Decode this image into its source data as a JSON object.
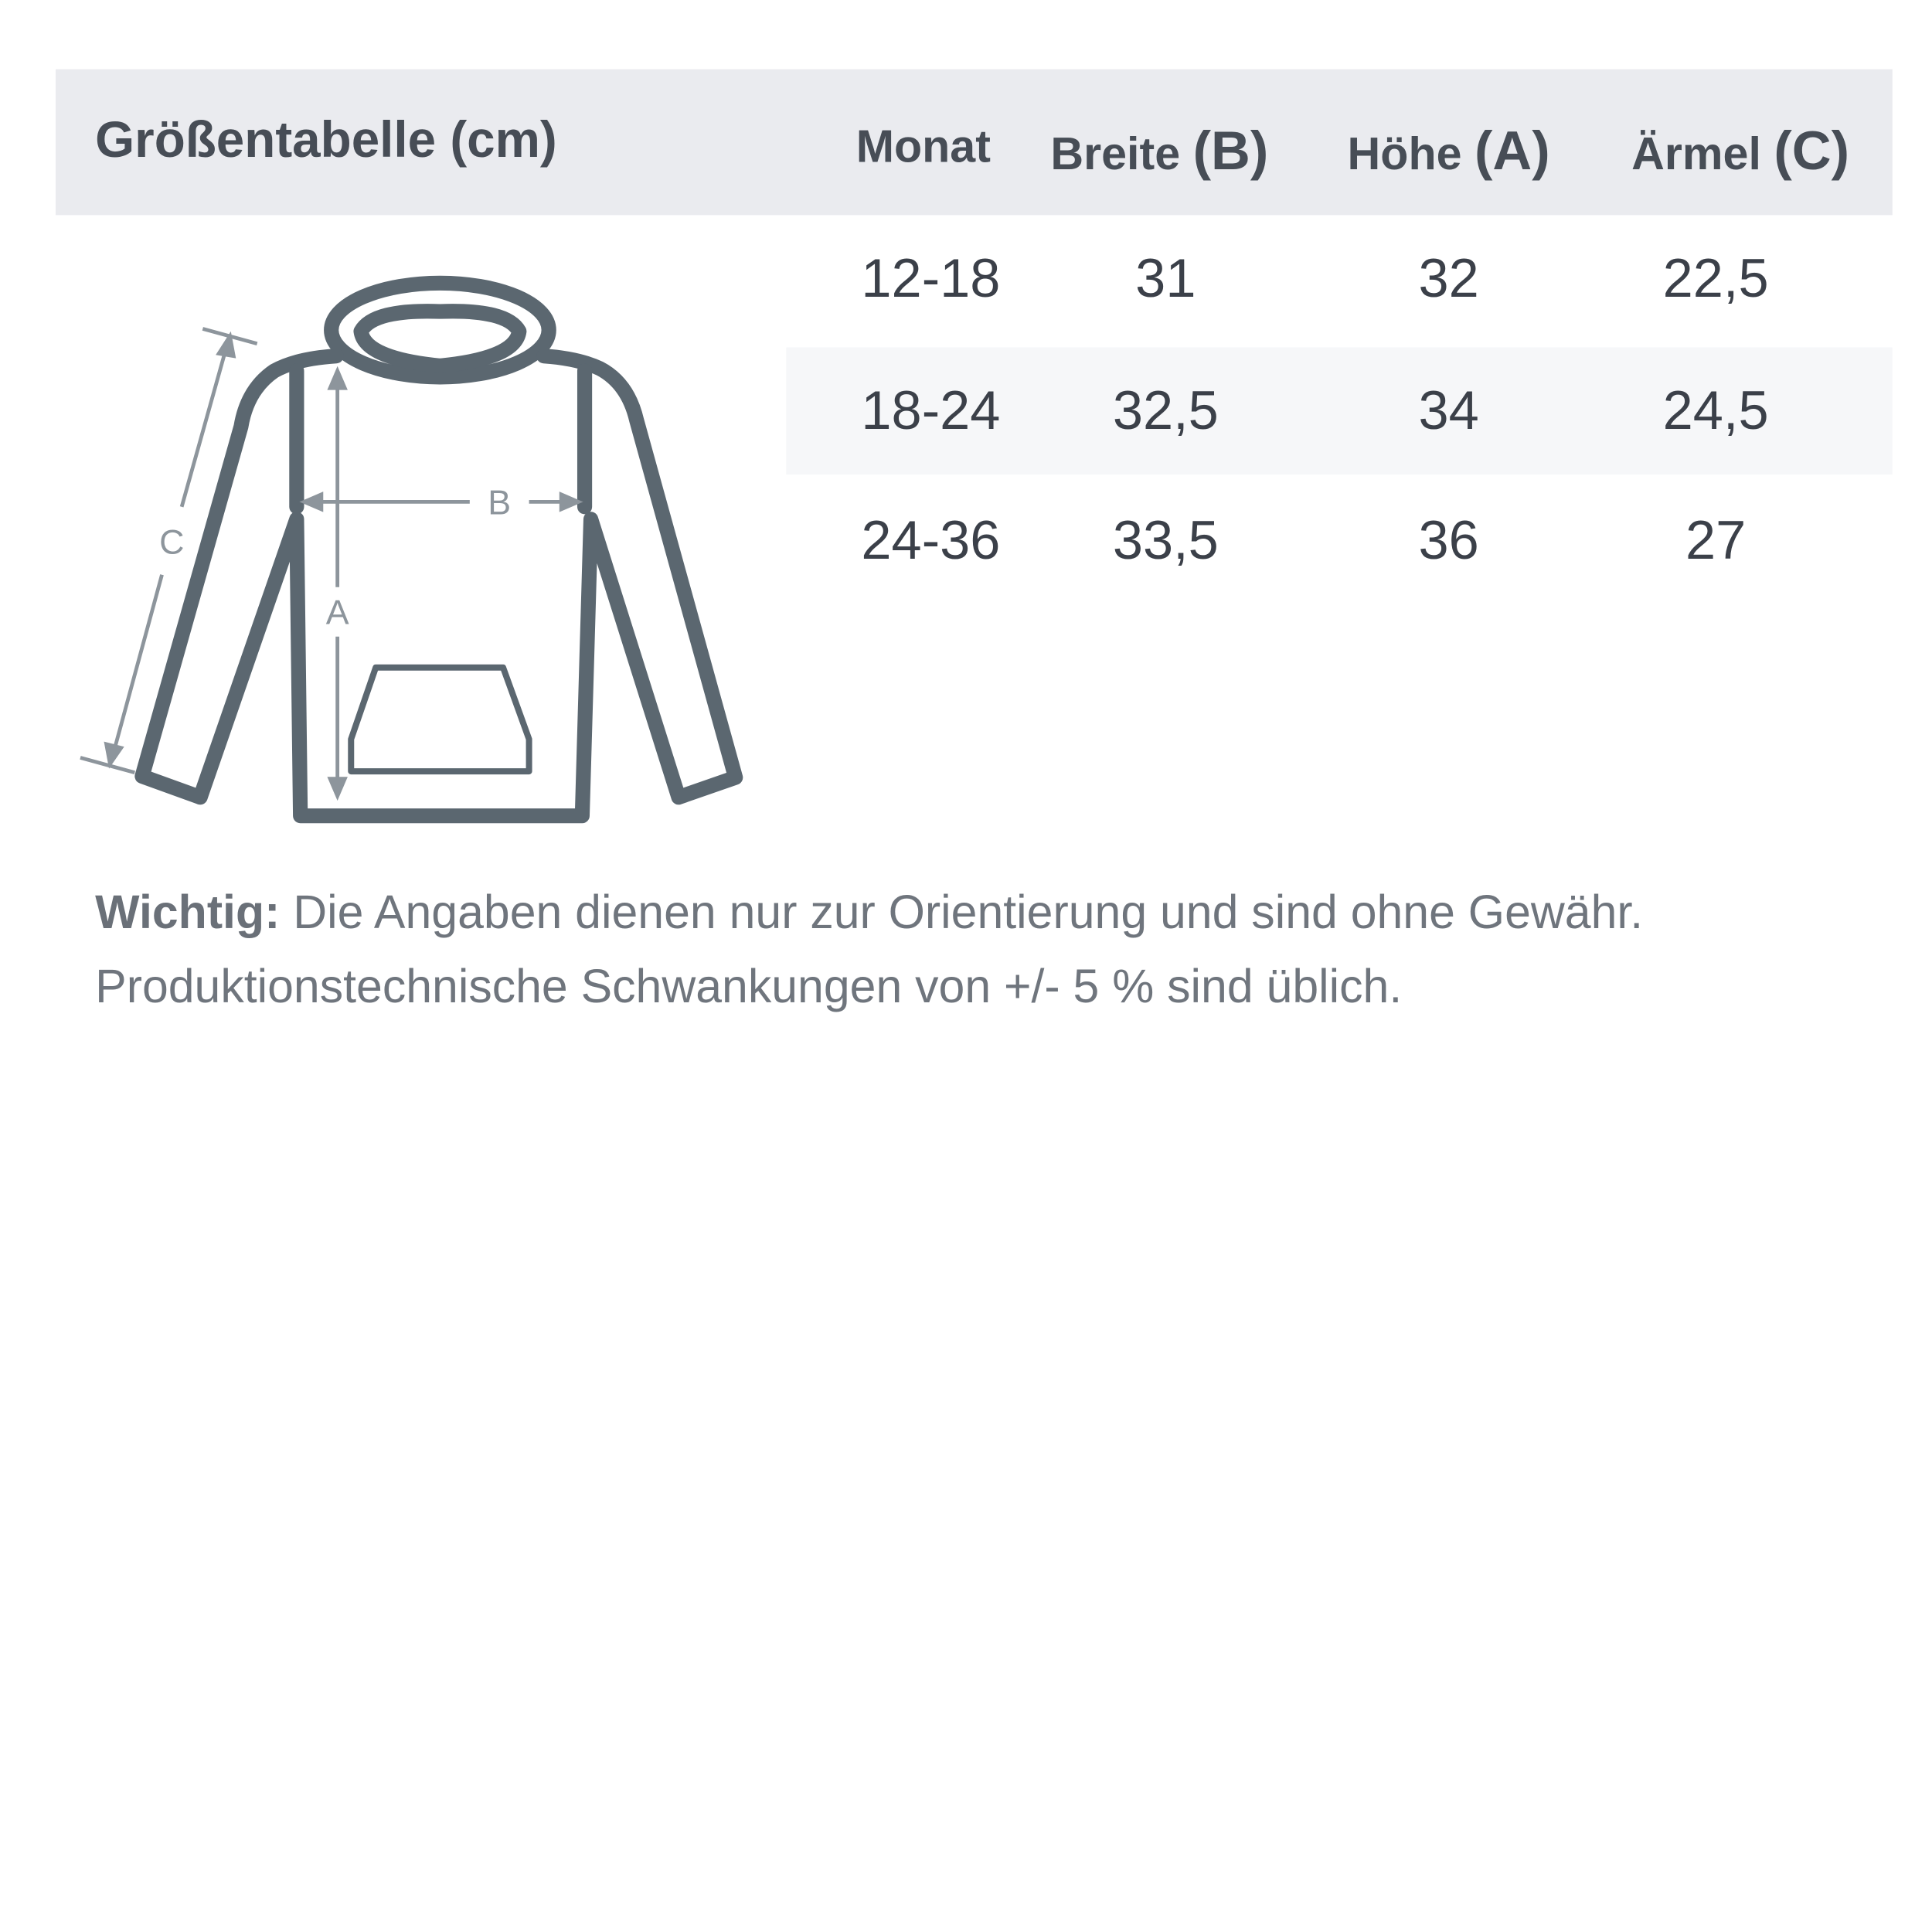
{
  "title": "Größentabelle (cm)",
  "columns": [
    {
      "label": "Monat",
      "suffix": ""
    },
    {
      "label": "Breite ",
      "suffix": "(B)"
    },
    {
      "label": "Höhe ",
      "suffix": "(A)"
    },
    {
      "label": "Ärmel ",
      "suffix": "(C)"
    }
  ],
  "rows": [
    [
      "12-18",
      "31",
      "32",
      "22,5"
    ],
    [
      "18-24",
      "32,5",
      "34",
      "24,5"
    ],
    [
      "24-36",
      "33,5",
      "36",
      "27"
    ]
  ],
  "diagram": {
    "label_a": "A",
    "label_b": "B",
    "label_c": "C",
    "icon": "hoodie-icon",
    "stroke_color": "#5b6770",
    "guide_color": "#8d959c"
  },
  "note": {
    "bold": "Wichtig:",
    "line1": " Die Angaben dienen nur zur Orientierung und sind ohne Gewähr.",
    "line2": "Produktionstechnische Schwankungen von +/- 5 % sind üblich."
  },
  "colors": {
    "header_bg": "#eaebef",
    "stripe_bg": "#f6f7f9",
    "text": "#3b4049"
  }
}
